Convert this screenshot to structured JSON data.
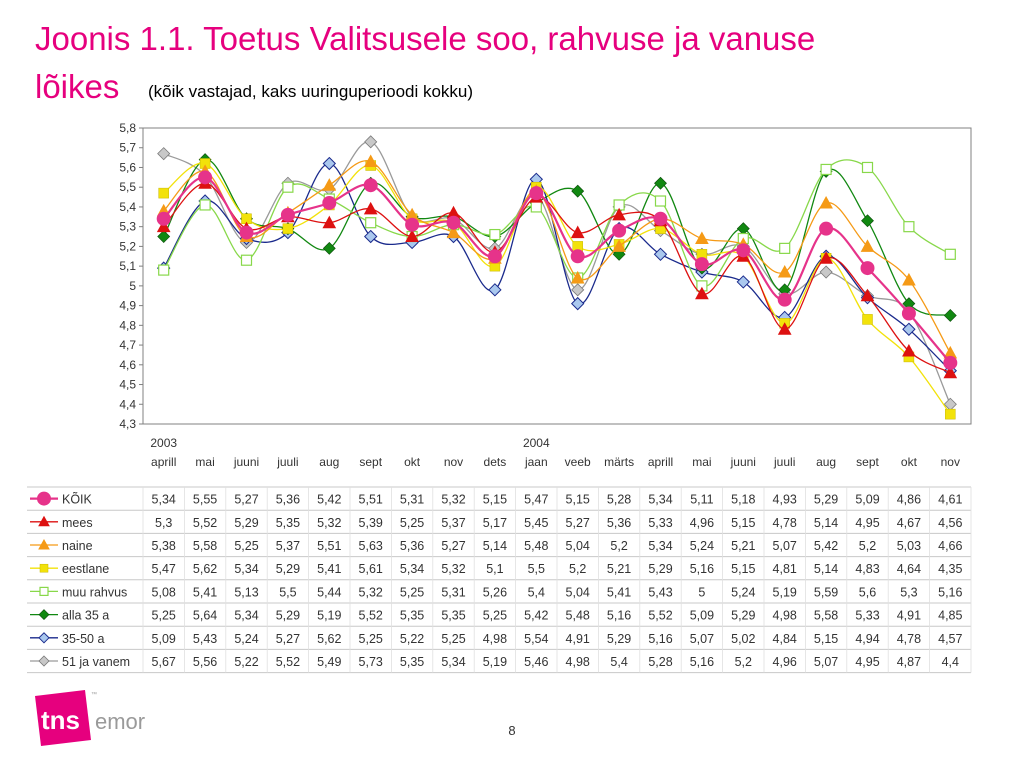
{
  "title_line1": "Joonis 1.1. Toetus Valitsusele soo, rahvuse ja vanuse",
  "title_line2": "lõikes",
  "subtitle": "(kõik vastajad, kaks uuringuperioodi kokku)",
  "page_number": "8",
  "logo": {
    "mark": "tns",
    "name": "emor",
    "tm": "™",
    "color": "#e6007e"
  },
  "chart_data": {
    "type": "line",
    "categories": [
      "aprill",
      "mai",
      "juuni",
      "juuli",
      "aug",
      "sept",
      "okt",
      "nov",
      "dets",
      "jaan",
      "veeb",
      "märts",
      "aprill",
      "mai",
      "juuni",
      "juuli",
      "aug",
      "sept",
      "okt",
      "nov"
    ],
    "year_labels": [
      {
        "index": 0,
        "label": "2003"
      },
      {
        "index": 9,
        "label": "2004"
      }
    ],
    "ylim": [
      4.3,
      5.8
    ],
    "yticks": [
      "5,8",
      "5,7",
      "5,6",
      "5,5",
      "5,4",
      "5,3",
      "5,2",
      "5,1",
      "5",
      "4,9",
      "4,8",
      "4,7",
      "4,6",
      "4,5",
      "4,4",
      "4,3"
    ],
    "grid": false,
    "series": [
      {
        "name": "KÕIK",
        "color": "#e6338a",
        "marker": "circle",
        "values": [
          5.34,
          5.55,
          5.27,
          5.36,
          5.42,
          5.51,
          5.31,
          5.32,
          5.15,
          5.47,
          5.15,
          5.28,
          5.34,
          5.11,
          5.18,
          4.93,
          5.29,
          5.09,
          4.86,
          4.61
        ],
        "labels": [
          "5,34",
          "5,55",
          "5,27",
          "5,36",
          "5,42",
          "5,51",
          "5,31",
          "5,32",
          "5,15",
          "5,47",
          "5,15",
          "5,28",
          "5,34",
          "5,11",
          "5,18",
          "4,93",
          "5,29",
          "5,09",
          "4,86",
          "4,61"
        ]
      },
      {
        "name": "mees",
        "color": "#dd1111",
        "marker": "triangle",
        "values": [
          5.3,
          5.52,
          5.29,
          5.35,
          5.32,
          5.39,
          5.25,
          5.37,
          5.17,
          5.45,
          5.27,
          5.36,
          5.33,
          4.96,
          5.15,
          4.78,
          5.14,
          4.95,
          4.67,
          4.56
        ],
        "labels": [
          "5,3",
          "5,52",
          "5,29",
          "5,35",
          "5,32",
          "5,39",
          "5,25",
          "5,37",
          "5,17",
          "5,45",
          "5,27",
          "5,36",
          "5,33",
          "4,96",
          "5,15",
          "4,78",
          "5,14",
          "4,95",
          "4,67",
          "4,56"
        ]
      },
      {
        "name": "naine",
        "color": "#f59a16",
        "marker": "triangle",
        "values": [
          5.38,
          5.58,
          5.25,
          5.37,
          5.51,
          5.63,
          5.36,
          5.27,
          5.14,
          5.48,
          5.04,
          5.2,
          5.34,
          5.24,
          5.21,
          5.07,
          5.42,
          5.2,
          5.03,
          4.66
        ],
        "labels": [
          "5,38",
          "5,58",
          "5,25",
          "5,37",
          "5,51",
          "5,63",
          "5,36",
          "5,27",
          "5,14",
          "5,48",
          "5,04",
          "5,2",
          "5,34",
          "5,24",
          "5,21",
          "5,07",
          "5,42",
          "5,2",
          "5,03",
          "4,66"
        ]
      },
      {
        "name": "eestlane",
        "color": "#f2e20a",
        "marker": "square",
        "values": [
          5.47,
          5.62,
          5.34,
          5.29,
          5.41,
          5.61,
          5.34,
          5.32,
          5.1,
          5.5,
          5.2,
          5.21,
          5.29,
          5.16,
          5.15,
          4.81,
          5.14,
          4.83,
          4.64,
          4.35
        ],
        "labels": [
          "5,47",
          "5,62",
          "5,34",
          "5,29",
          "5,41",
          "5,61",
          "5,34",
          "5,32",
          "5,1",
          "5,5",
          "5,2",
          "5,21",
          "5,29",
          "5,16",
          "5,15",
          "4,81",
          "5,14",
          "4,83",
          "4,64",
          "4,35"
        ]
      },
      {
        "name": "muu rahvus",
        "color": "#88d84a",
        "marker": "square-open",
        "values": [
          5.08,
          5.41,
          5.13,
          5.5,
          5.44,
          5.32,
          5.25,
          5.31,
          5.26,
          5.4,
          5.04,
          5.41,
          5.43,
          5.0,
          5.24,
          5.19,
          5.59,
          5.6,
          5.3,
          5.16
        ],
        "labels": [
          "5,08",
          "5,41",
          "5,13",
          "5,5",
          "5,44",
          "5,32",
          "5,25",
          "5,31",
          "5,26",
          "5,4",
          "5,04",
          "5,41",
          "5,43",
          "5",
          "5,24",
          "5,19",
          "5,59",
          "5,6",
          "5,3",
          "5,16"
        ]
      },
      {
        "name": "alla 35 a",
        "color": "#118811",
        "marker": "diamond",
        "values": [
          5.25,
          5.64,
          5.34,
          5.29,
          5.19,
          5.52,
          5.35,
          5.35,
          5.25,
          5.42,
          5.48,
          5.16,
          5.52,
          5.09,
          5.29,
          4.98,
          5.58,
          5.33,
          4.91,
          4.85
        ],
        "labels": [
          "5,25",
          "5,64",
          "5,34",
          "5,29",
          "5,19",
          "5,52",
          "5,35",
          "5,35",
          "5,25",
          "5,42",
          "5,48",
          "5,16",
          "5,52",
          "5,09",
          "5,29",
          "4,98",
          "5,58",
          "5,33",
          "4,91",
          "4,85"
        ]
      },
      {
        "name": "35-50 a",
        "color": "#1a2a8c",
        "marker": "diamond-open",
        "values": [
          5.09,
          5.43,
          5.24,
          5.27,
          5.62,
          5.25,
          5.22,
          5.25,
          4.98,
          5.54,
          4.91,
          5.29,
          5.16,
          5.07,
          5.02,
          4.84,
          5.15,
          4.94,
          4.78,
          4.57
        ],
        "labels": [
          "5,09",
          "5,43",
          "5,24",
          "5,27",
          "5,62",
          "5,25",
          "5,22",
          "5,25",
          "4,98",
          "5,54",
          "4,91",
          "5,29",
          "5,16",
          "5,07",
          "5,02",
          "4,84",
          "5,15",
          "4,94",
          "4,78",
          "4,57"
        ]
      },
      {
        "name": "51 ja vanem",
        "color": "#9a9a9a",
        "marker": "diamond-gray",
        "values": [
          5.67,
          5.56,
          5.22,
          5.52,
          5.49,
          5.73,
          5.35,
          5.34,
          5.19,
          5.46,
          4.98,
          5.4,
          5.28,
          5.16,
          5.2,
          4.96,
          5.07,
          4.95,
          4.87,
          4.4
        ],
        "labels": [
          "5,67",
          "5,56",
          "5,22",
          "5,52",
          "5,49",
          "5,73",
          "5,35",
          "5,34",
          "5,19",
          "5,46",
          "4,98",
          "5,4",
          "5,28",
          "5,16",
          "5,2",
          "4,96",
          "5,07",
          "4,95",
          "4,87",
          "4,4"
        ]
      }
    ]
  }
}
